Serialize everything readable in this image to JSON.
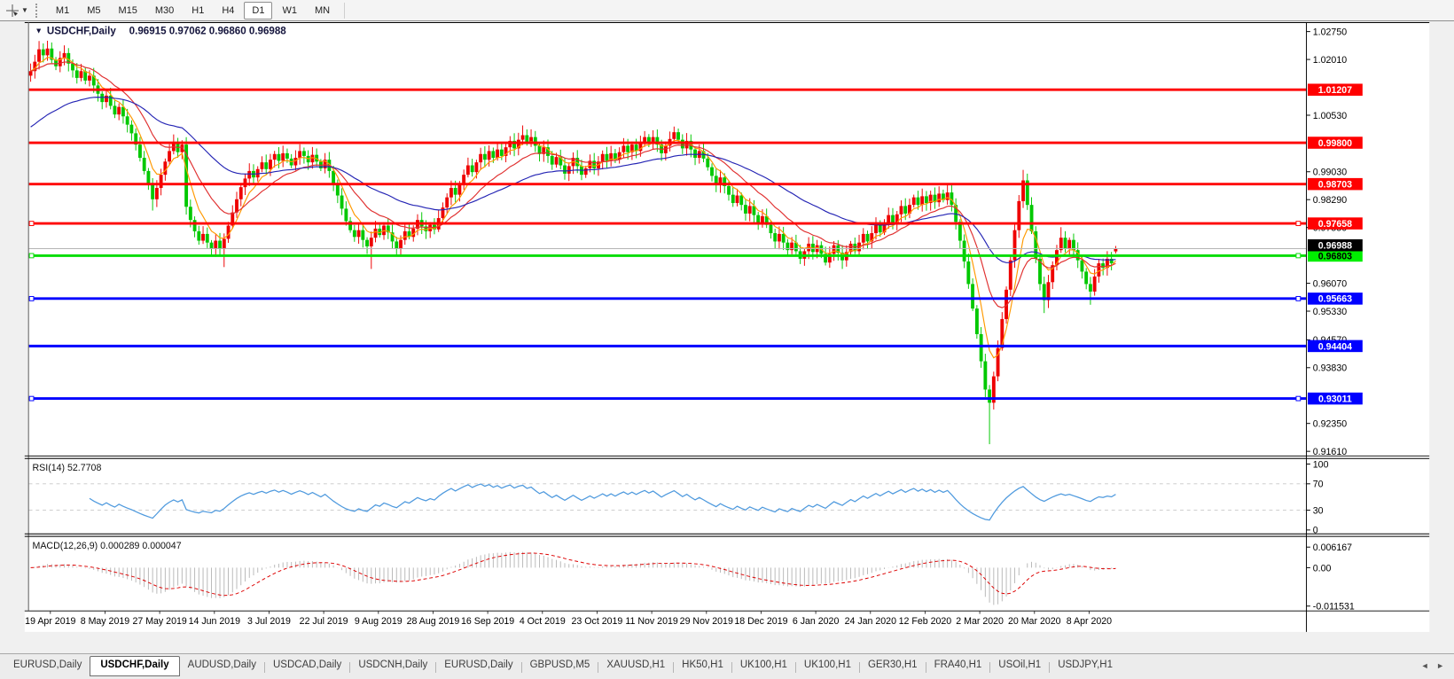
{
  "toolbar": {
    "cursor_tool": "crosshair-cursor-tool",
    "timeframes": [
      "M1",
      "M5",
      "M15",
      "M30",
      "H1",
      "H4",
      "D1",
      "W1",
      "MN"
    ],
    "active_timeframe": "D1"
  },
  "chart": {
    "title": {
      "marker": "▼",
      "symbol": "USDCHF,Daily",
      "ohlc": "0.96915 0.97062 0.96860 0.96988"
    },
    "price_axis": {
      "ticks": [
        "1.02750",
        "1.02010",
        "1.00530",
        "0.99030",
        "0.98290",
        "0.97550",
        "0.96070",
        "0.95330",
        "0.94570",
        "0.93830",
        "0.92350",
        "0.91610"
      ],
      "badges": [
        {
          "label": "1.01207",
          "price": 1.01207,
          "bg": "#ff0000",
          "fg": "#ffffff"
        },
        {
          "label": "0.99800",
          "price": 0.998,
          "bg": "#ff0000",
          "fg": "#ffffff"
        },
        {
          "label": "0.98703",
          "price": 0.98703,
          "bg": "#ff0000",
          "fg": "#ffffff"
        },
        {
          "label": "0.97658",
          "price": 0.97658,
          "bg": "#ff0000",
          "fg": "#ffffff"
        },
        {
          "label": "0.96803",
          "price": 0.96803,
          "bg": "#00ee00",
          "fg": "#000000"
        },
        {
          "label": "0.96988",
          "price": 0.96988,
          "bg": "#000000",
          "fg": "#ffffff",
          "dy": -4
        },
        {
          "label": "0.95663",
          "price": 0.95663,
          "bg": "#0000ff",
          "fg": "#ffffff"
        },
        {
          "label": "0.94404",
          "price": 0.94404,
          "bg": "#0000ff",
          "fg": "#ffffff"
        },
        {
          "label": "0.93011",
          "price": 0.93011,
          "bg": "#0000ff",
          "fg": "#ffffff"
        }
      ]
    },
    "hlines": [
      {
        "price": 1.01207,
        "color": "#ff0000",
        "width": 3,
        "handles": false
      },
      {
        "price": 0.998,
        "color": "#ff0000",
        "width": 3,
        "handles": false
      },
      {
        "price": 0.98703,
        "color": "#ff0000",
        "width": 3,
        "handles": false
      },
      {
        "price": 0.97658,
        "color": "#ff0000",
        "width": 3,
        "handles": true
      },
      {
        "price": 0.96803,
        "color": "#00dd00",
        "width": 3,
        "handles": true
      },
      {
        "price": 0.95663,
        "color": "#0000ff",
        "width": 3,
        "handles": true
      },
      {
        "price": 0.94404,
        "color": "#0000ff",
        "width": 3,
        "handles": false
      },
      {
        "price": 0.93011,
        "color": "#0000ff",
        "width": 3,
        "handles": true
      }
    ],
    "current_price_line": {
      "price": 0.96988,
      "color": "#b4b4b4"
    }
  },
  "chart_data": {
    "type": "candlestick",
    "title": "USDCHF,Daily",
    "symbol": "USDCHF",
    "timeframe": "Daily",
    "last_bar": {
      "open": 0.96915,
      "high": 0.97062,
      "low": 0.9686,
      "close": 0.96988
    },
    "ylim": [
      0.915,
      1.03
    ],
    "x_labels": [
      "19 Apr 2019",
      "8 May 2019",
      "27 May 2019",
      "14 Jun 2019",
      "3 Jul 2019",
      "22 Jul 2019",
      "9 Aug 2019",
      "28 Aug 2019",
      "16 Sep 2019",
      "4 Oct 2019",
      "23 Oct 2019",
      "11 Nov 2019",
      "29 Nov 2019",
      "18 Dec 2019",
      "6 Jan 2020",
      "24 Jan 2020",
      "12 Feb 2020",
      "2 Mar 2020",
      "20 Mar 2020",
      "8 Apr 2020"
    ],
    "closes": [
      1.017,
      1.0195,
      1.0228,
      1.0212,
      1.023,
      1.02,
      1.0183,
      1.0205,
      1.0218,
      1.019,
      1.0172,
      1.0152,
      1.017,
      1.0145,
      1.0158,
      1.0132,
      1.011,
      1.0088,
      1.0105,
      1.0078,
      1.0055,
      1.0075,
      1.005,
      1.0028,
      1.0005,
      0.9975,
      0.994,
      0.9905,
      0.987,
      0.983,
      0.986,
      0.9895,
      0.993,
      0.9958,
      0.998,
      0.9955,
      0.9975,
      0.981,
      0.9775,
      0.9745,
      0.972,
      0.9738,
      0.9715,
      0.9698,
      0.972,
      0.97,
      0.9725,
      0.976,
      0.9795,
      0.983,
      0.9862,
      0.9885,
      0.9905,
      0.9888,
      0.991,
      0.9928,
      0.991,
      0.9935,
      0.995,
      0.9932,
      0.9952,
      0.9938,
      0.992,
      0.994,
      0.9958,
      0.9945,
      0.9928,
      0.9948,
      0.993,
      0.9912,
      0.9935,
      0.9905,
      0.9872,
      0.984,
      0.9805,
      0.9772,
      0.9748,
      0.973,
      0.9748,
      0.9722,
      0.9705,
      0.9728,
      0.9752,
      0.9735,
      0.976,
      0.9742,
      0.9718,
      0.97,
      0.9722,
      0.9745,
      0.973,
      0.9752,
      0.9775,
      0.9758,
      0.9745,
      0.9762,
      0.975,
      0.978,
      0.9808,
      0.9835,
      0.986,
      0.9842,
      0.9868,
      0.9895,
      0.992,
      0.9902,
      0.9928,
      0.995,
      0.9935,
      0.9958,
      0.994,
      0.9962,
      0.9945,
      0.9968,
      0.9985,
      0.9965,
      0.9988,
      1.0,
      0.998,
      0.9995,
      0.9972,
      0.995,
      0.9968,
      0.9945,
      0.9922,
      0.9942,
      0.992,
      0.9898,
      0.9918,
      0.994,
      0.9918,
      0.9895,
      0.9912,
      0.9932,
      0.9912,
      0.993,
      0.995,
      0.9932,
      0.9952,
      0.9935,
      0.9955,
      0.9972,
      0.9955,
      0.9975,
      0.9958,
      0.9978,
      0.9995,
      0.9978,
      0.9995,
      0.9975,
      0.9952,
      0.9972,
      0.999,
      1.0008,
      0.9988,
      0.9965,
      0.9985,
      0.9962,
      0.994,
      0.9958,
      0.9938,
      0.9915,
      0.9892,
      0.9868,
      0.9888,
      0.9865,
      0.9842,
      0.982,
      0.984,
      0.9815,
      0.9792,
      0.9812,
      0.9788,
      0.9765,
      0.9785,
      0.9762,
      0.974,
      0.9718,
      0.9738,
      0.9715,
      0.9695,
      0.9715,
      0.9692,
      0.9672,
      0.9692,
      0.9712,
      0.969,
      0.9708,
      0.9685,
      0.9662,
      0.9685,
      0.9708,
      0.9688,
      0.9668,
      0.969,
      0.9712,
      0.9692,
      0.9715,
      0.9738,
      0.9718,
      0.974,
      0.9762,
      0.9742,
      0.9765,
      0.9788,
      0.9768,
      0.979,
      0.9812,
      0.9792,
      0.9815,
      0.9835,
      0.9815,
      0.9838,
      0.982,
      0.9842,
      0.9822,
      0.9845,
      0.9828,
      0.9848,
      0.9815,
      0.977,
      0.972,
      0.9665,
      0.9605,
      0.954,
      0.9472,
      0.94,
      0.9325,
      0.929,
      0.936,
      0.9435,
      0.9512,
      0.959,
      0.9668,
      0.9748,
      0.9825,
      0.988,
      0.9815,
      0.9745,
      0.9672,
      0.9605,
      0.9562,
      0.961,
      0.9655,
      0.9695,
      0.9728,
      0.97,
      0.9722,
      0.9695,
      0.9668,
      0.9638,
      0.9605,
      0.9585,
      0.9625,
      0.966,
      0.9648,
      0.9672,
      0.966,
      0.96988
    ],
    "overrides": {
      "2": {
        "h": 1.025
      },
      "29": {
        "l": 0.98
      },
      "34": {
        "h": 1.0002
      },
      "46": {
        "l": 0.965
      },
      "64": {
        "h": 0.9976
      },
      "81": {
        "l": 0.9645
      },
      "87": {
        "l": 0.968
      },
      "117": {
        "h": 1.0026
      },
      "153": {
        "h": 1.0023
      },
      "193": {
        "l": 0.9645
      },
      "218": {
        "h": 0.9868
      },
      "228": {
        "l": 0.918
      },
      "236": {
        "h": 0.9908
      },
      "241": {
        "l": 0.9528
      },
      "245": {
        "h": 0.9756
      },
      "252": {
        "l": 0.955
      },
      "258": {
        "o": 0.96915,
        "h": 0.97062,
        "l": 0.9686
      }
    },
    "bull_color": "#ee0000",
    "bear_color": "#00c800",
    "moving_averages": [
      {
        "name": "MA fast",
        "period": 6,
        "color": "#ff9900"
      },
      {
        "name": "MA medium",
        "period": 16,
        "color": "#e03030"
      },
      {
        "name": "MA slow",
        "period": 44,
        "color": "#2424b4",
        "seed": 1.0015
      }
    ]
  },
  "rsi_pane": {
    "label": "RSI(14) 52.7708",
    "period": 14,
    "value": 52.7708,
    "axis": [
      {
        "label": "100",
        "v": 100
      },
      {
        "label": "70",
        "v": 70
      },
      {
        "label": "30",
        "v": 30
      },
      {
        "label": "0",
        "v": 0
      }
    ],
    "levels": [
      70,
      30
    ],
    "line_color": "#4f9ade"
  },
  "macd_pane": {
    "label": "MACD(12,26,9) 0.000289 0.000047",
    "params": [
      12,
      26,
      9
    ],
    "macd_value": 0.000289,
    "signal_value": 4.7e-05,
    "axis": [
      {
        "label": "0.006167",
        "v": 0.006167
      },
      {
        "label": "0.00",
        "v": 0
      },
      {
        "label": "-0.011531",
        "v": -0.011531
      }
    ],
    "histogram_color": "#b8b8b8",
    "signal_color": "#dd0000"
  },
  "tabs": {
    "items": [
      "EURUSD,Daily",
      "USDCHF,Daily",
      "AUDUSD,Daily",
      "USDCAD,Daily",
      "USDCNH,Daily",
      "EURUSD,Daily",
      "GBPUSD,M5",
      "XAUUSD,H1",
      "HK50,H1",
      "UK100,H1",
      "UK100,H1",
      "GER30,H1",
      "FRA40,H1",
      "USOil,H1",
      "USDJPY,H1"
    ],
    "active_index": 1,
    "nav_left": "◄",
    "nav_right": "►"
  }
}
